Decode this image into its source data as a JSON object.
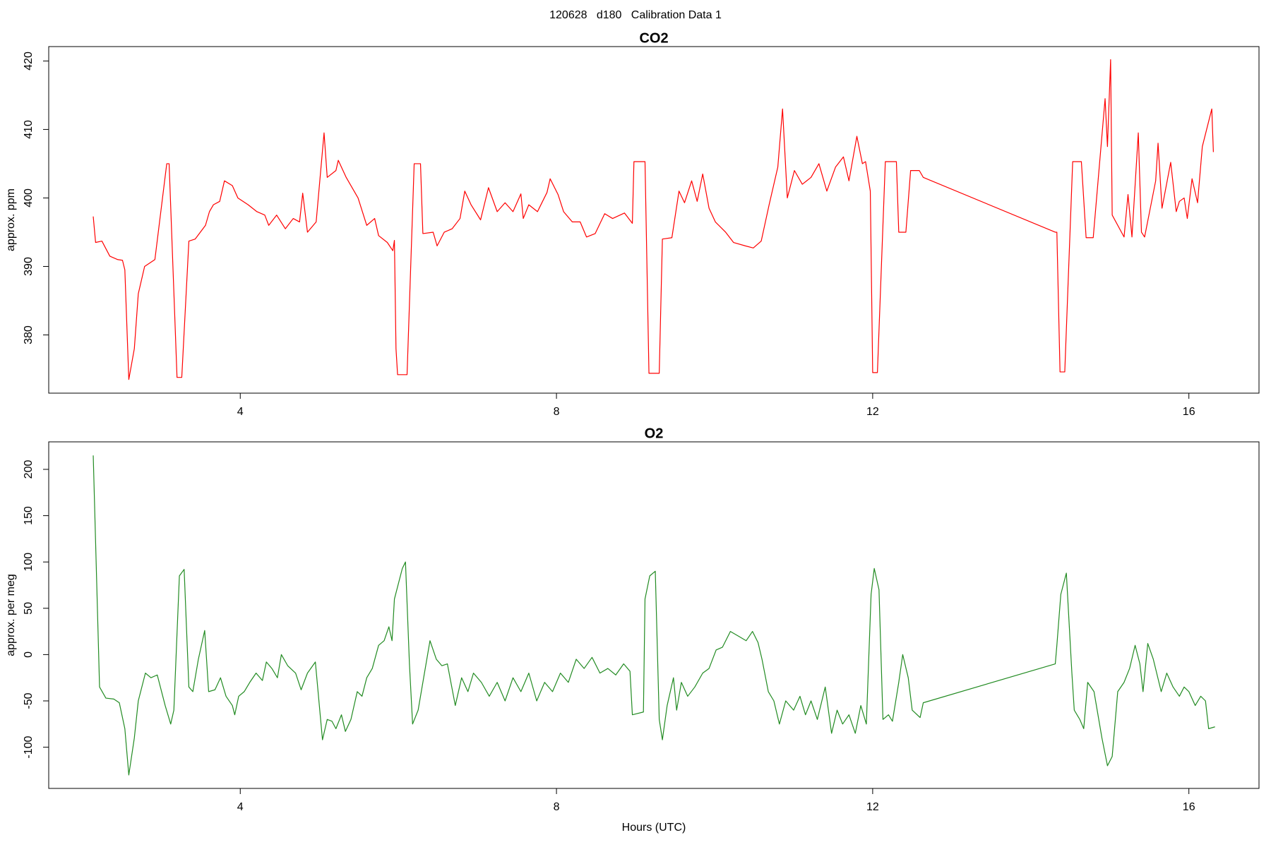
{
  "title": "120628   d180   Calibration Data 1",
  "chart_data": [
    {
      "type": "line",
      "title": "CO2",
      "ylabel": "approx. ppm",
      "color": "#ff0000",
      "xlim": [
        1.577,
        16.887
      ],
      "xticks": [
        4,
        8,
        12,
        16
      ],
      "ylim": [
        371.5,
        422.1
      ],
      "yticks": [
        380,
        390,
        400,
        410,
        420
      ],
      "x": [
        2.14,
        2.17,
        2.25,
        2.35,
        2.45,
        2.51,
        2.54,
        2.59,
        2.66,
        2.71,
        2.79,
        2.92,
        3.07,
        3.1,
        3.2,
        3.26,
        3.35,
        3.43,
        3.56,
        3.61,
        3.66,
        3.74,
        3.8,
        3.9,
        3.97,
        4.1,
        4.21,
        4.31,
        4.36,
        4.46,
        4.57,
        4.67,
        4.75,
        4.79,
        4.85,
        4.96,
        5.06,
        5.1,
        5.21,
        5.24,
        5.34,
        5.49,
        5.6,
        5.7,
        5.75,
        5.86,
        5.93,
        5.95,
        5.97,
        5.99,
        6.11,
        6.2,
        6.28,
        6.31,
        6.44,
        6.49,
        6.58,
        6.68,
        6.78,
        6.84,
        6.92,
        7.04,
        7.14,
        7.25,
        7.35,
        7.45,
        7.55,
        7.58,
        7.65,
        7.76,
        7.88,
        7.92,
        8.02,
        8.09,
        8.2,
        8.3,
        8.38,
        8.49,
        8.61,
        8.71,
        8.86,
        8.96,
        8.98,
        9.12,
        9.17,
        9.3,
        9.34,
        9.46,
        9.55,
        9.62,
        9.71,
        9.78,
        9.85,
        9.93,
        10.01,
        10.14,
        10.24,
        10.39,
        10.49,
        10.59,
        10.69,
        10.8,
        10.86,
        10.92,
        11.01,
        11.11,
        11.22,
        11.32,
        11.42,
        11.53,
        11.63,
        11.7,
        11.8,
        11.87,
        11.91,
        11.97,
        12.0,
        12.06,
        12.16,
        12.3,
        12.33,
        12.42,
        12.48,
        12.59,
        12.64,
        14.31,
        14.33,
        14.37,
        14.43,
        14.53,
        14.64,
        14.7,
        14.79,
        14.94,
        14.97,
        15.01,
        15.03,
        15.18,
        15.23,
        15.28,
        15.36,
        15.4,
        15.44,
        15.58,
        15.61,
        15.66,
        15.77,
        15.84,
        15.88,
        15.94,
        15.98,
        16.04,
        16.11,
        16.17,
        16.29,
        16.31
      ],
      "values": [
        397.3,
        393.5,
        393.7,
        391.5,
        391,
        390.9,
        389.5,
        373.5,
        378,
        386,
        390,
        391,
        405,
        405,
        373.8,
        373.8,
        393.7,
        394,
        396,
        398,
        399,
        399.5,
        402.5,
        401.8,
        400,
        399,
        398,
        397.5,
        396,
        397.5,
        395.5,
        397,
        396.5,
        400.7,
        395,
        396.5,
        409.5,
        403,
        404,
        405.5,
        403,
        400,
        396,
        397,
        394.5,
        393.5,
        392.3,
        393.8,
        378,
        374.2,
        374.2,
        405,
        405,
        394.8,
        395,
        393,
        395,
        395.5,
        397,
        401,
        399,
        396.8,
        401.5,
        398,
        399.3,
        398,
        400.6,
        397,
        399,
        398,
        400.8,
        402.8,
        400.5,
        398,
        396.5,
        396.5,
        394.3,
        394.8,
        397.7,
        397,
        397.8,
        396.3,
        405.3,
        405.3,
        374.4,
        374.4,
        394,
        394.2,
        401,
        399.3,
        402.5,
        399.5,
        403.5,
        398.5,
        396.5,
        395,
        393.5,
        393,
        392.7,
        393.7,
        399,
        404.5,
        413,
        400,
        404,
        402,
        403,
        405,
        401,
        404.5,
        406,
        402.5,
        409,
        405,
        405.3,
        401,
        374.5,
        374.5,
        405.3,
        405.3,
        395,
        395,
        404,
        404,
        403,
        395,
        395,
        374.6,
        374.6,
        405.3,
        405.3,
        394.2,
        394.2,
        414.5,
        407.5,
        420.2,
        397.5,
        394.3,
        400.5,
        394.3,
        409.5,
        395,
        394.3,
        402.5,
        408,
        398.5,
        405.2,
        398,
        399.5,
        400,
        397,
        402.8,
        399.3,
        407.5,
        413,
        406.7
      ]
    },
    {
      "type": "line",
      "title": "O2",
      "ylabel": "approx. per meg",
      "xlabel": "Hours (UTC)",
      "color": "#228b22",
      "xlim": [
        1.577,
        16.887
      ],
      "xticks": [
        4,
        8,
        12,
        16
      ],
      "ylim": [
        -144.5,
        229.7
      ],
      "yticks": [
        -100,
        -50,
        0,
        50,
        100,
        150,
        200
      ],
      "x": [
        2.14,
        2.22,
        2.3,
        2.4,
        2.47,
        2.54,
        2.59,
        2.66,
        2.71,
        2.8,
        2.87,
        2.95,
        3.05,
        3.12,
        3.16,
        3.23,
        3.29,
        3.35,
        3.4,
        3.47,
        3.55,
        3.6,
        3.68,
        3.75,
        3.82,
        3.9,
        3.93,
        3.98,
        4.05,
        4.12,
        4.2,
        4.28,
        4.33,
        4.4,
        4.47,
        4.52,
        4.6,
        4.7,
        4.77,
        4.85,
        4.95,
        5.04,
        5.1,
        5.16,
        5.21,
        5.28,
        5.33,
        5.4,
        5.48,
        5.54,
        5.6,
        5.67,
        5.75,
        5.82,
        5.88,
        5.92,
        5.95,
        6.05,
        6.09,
        6.14,
        6.18,
        6.25,
        6.33,
        6.4,
        6.48,
        6.55,
        6.62,
        6.72,
        6.8,
        6.88,
        6.95,
        7.05,
        7.15,
        7.25,
        7.35,
        7.45,
        7.55,
        7.65,
        7.75,
        7.85,
        7.95,
        8.05,
        8.15,
        8.25,
        8.35,
        8.45,
        8.55,
        8.65,
        8.75,
        8.85,
        8.93,
        8.96,
        9.1,
        9.12,
        9.18,
        9.25,
        9.3,
        9.34,
        9.4,
        9.48,
        9.52,
        9.58,
        9.66,
        9.75,
        9.85,
        9.93,
        10.02,
        10.1,
        10.2,
        10.3,
        10.4,
        10.48,
        10.55,
        10.6,
        10.68,
        10.75,
        10.82,
        10.9,
        11.0,
        11.08,
        11.15,
        11.22,
        11.3,
        11.4,
        11.48,
        11.55,
        11.62,
        11.7,
        11.78,
        11.85,
        11.92,
        11.98,
        12.02,
        12.08,
        12.13,
        12.2,
        12.25,
        12.33,
        12.38,
        12.45,
        12.5,
        12.6,
        12.64,
        14.31,
        14.33,
        14.38,
        14.45,
        14.52,
        14.55,
        14.62,
        14.67,
        14.72,
        14.8,
        14.9,
        14.97,
        15.03,
        15.1,
        15.18,
        15.25,
        15.32,
        15.38,
        15.42,
        15.48,
        15.55,
        15.65,
        15.72,
        15.8,
        15.88,
        15.94,
        16.0,
        16.08,
        16.15,
        16.21,
        16.25,
        16.33
      ],
      "values": [
        215,
        -35,
        -47,
        -48,
        -52,
        -80,
        -130,
        -90,
        -50,
        -20,
        -25,
        -22,
        -55,
        -75,
        -60,
        85,
        92,
        -35,
        -40,
        -5,
        26,
        -40,
        -38,
        -25,
        -45,
        -55,
        -65,
        -45,
        -40,
        -30,
        -20,
        -28,
        -8,
        -15,
        -25,
        0,
        -12,
        -20,
        -38,
        -20,
        -8,
        -92,
        -70,
        -72,
        -80,
        -65,
        -83,
        -70,
        -40,
        -45,
        -25,
        -15,
        10,
        15,
        30,
        15,
        60,
        93,
        100,
        -10,
        -75,
        -60,
        -20,
        15,
        -5,
        -12,
        -10,
        -55,
        -25,
        -40,
        -20,
        -30,
        -45,
        -30,
        -50,
        -25,
        -40,
        -20,
        -50,
        -30,
        -40,
        -20,
        -30,
        -5,
        -15,
        -3,
        -20,
        -15,
        -22,
        -10,
        -18,
        -65,
        -62,
        60,
        85,
        90,
        -70,
        -92,
        -55,
        -25,
        -60,
        -30,
        -45,
        -35,
        -20,
        -15,
        5,
        8,
        25,
        20,
        15,
        25,
        13,
        -5,
        -40,
        -50,
        -75,
        -50,
        -60,
        -45,
        -65,
        -50,
        -70,
        -35,
        -85,
        -60,
        -75,
        -65,
        -85,
        -55,
        -75,
        65,
        93,
        70,
        -70,
        -65,
        -72,
        -30,
        0,
        -25,
        -60,
        -68,
        -52,
        -10,
        10,
        65,
        88,
        -20,
        -60,
        -70,
        -80,
        -30,
        -40,
        -90,
        -120,
        -110,
        -40,
        -30,
        -15,
        10,
        -10,
        -40,
        12,
        -5,
        -40,
        -20,
        -35,
        -45,
        -35,
        -40,
        -55,
        -45,
        -50,
        -80,
        -78
      ]
    }
  ]
}
